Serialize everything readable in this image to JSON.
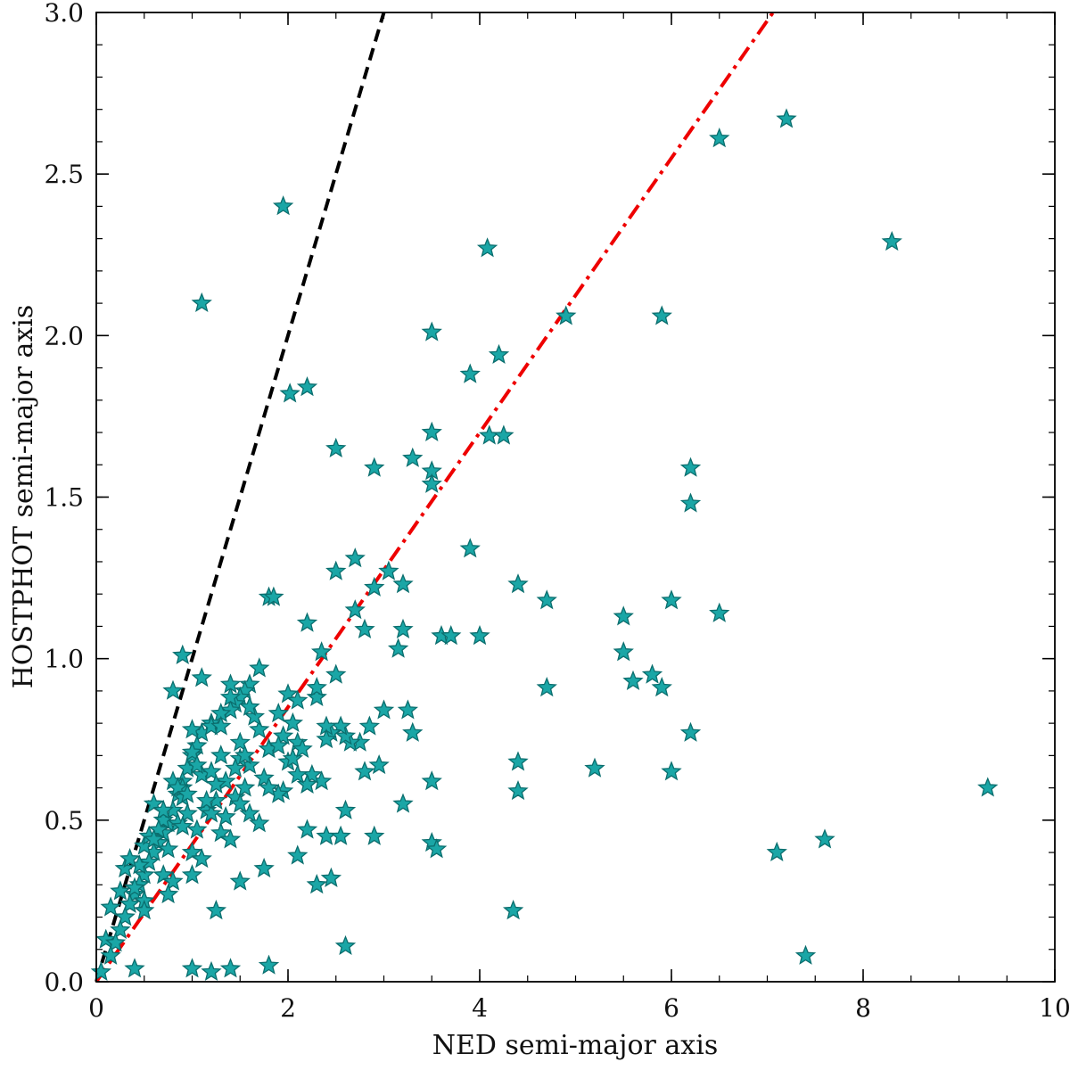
{
  "chart_data": {
    "type": "scatter",
    "title": "",
    "xlabel": "NED semi-major axis",
    "ylabel": "HOSTPHOT semi-major axis",
    "xlim": [
      0,
      10
    ],
    "ylim": [
      0,
      3.0
    ],
    "x_ticks": [
      0,
      2,
      4,
      6,
      8,
      10
    ],
    "x_tick_labels": [
      "0",
      "2",
      "4",
      "6",
      "8",
      "10"
    ],
    "y_ticks": [
      0,
      0.5,
      1.0,
      1.5,
      2.0,
      2.5,
      3.0
    ],
    "y_tick_labels": [
      "0.0",
      "0.5",
      "1.0",
      "1.5",
      "2.0",
      "2.5",
      "3.0"
    ],
    "grid": false,
    "lines": [
      {
        "style": "dashed",
        "color": "#000000",
        "slope": 1.0,
        "x": [
          0,
          3.0
        ],
        "y": [
          0,
          3.0
        ]
      },
      {
        "style": "dashdot",
        "color": "#ee0000",
        "slope": 0.425,
        "x": [
          0,
          7.06
        ],
        "y": [
          0,
          3.0
        ]
      }
    ],
    "series": [
      {
        "marker": "star",
        "color": "#1aa6a6",
        "edge_color": "#0b6e6e",
        "x": [
          1.95,
          1.1,
          3.5,
          4.08,
          4.2,
          3.9,
          4.1,
          4.25,
          4.9,
          5.9,
          6.5,
          7.2,
          8.3,
          2.2,
          2.02,
          2.5,
          3.5,
          3.5,
          3.5,
          3.3,
          2.9,
          6.2,
          6.2,
          3.9,
          4.4,
          4.7,
          6.0,
          5.5,
          6.5,
          5.5,
          5.6,
          5.8,
          5.9,
          4.0,
          3.6,
          3.7,
          4.7,
          3.2,
          2.7,
          2.8,
          3.2,
          0.9,
          6.2,
          6.0,
          5.2,
          4.4,
          4.4,
          3.5,
          3.2,
          2.9,
          2.6,
          2.4,
          2.3,
          2.2,
          2.1,
          1.95,
          2.55,
          2.45,
          2.35,
          2.3,
          2.0,
          1.8,
          1.85,
          9.3,
          7.6,
          7.1,
          7.4,
          4.35,
          2.6,
          1.8,
          1.4,
          1.2,
          1.0,
          0.4,
          0.15,
          0.05,
          0.1,
          3.5,
          3.55,
          3.3,
          3.25,
          3.0,
          2.95,
          2.8,
          2.85,
          2.75,
          2.65,
          2.6,
          2.55,
          2.45,
          2.4,
          2.25,
          2.2,
          2.1,
          2.05,
          1.7,
          1.6,
          1.55,
          1.5,
          1.45,
          1.4,
          1.3,
          1.2,
          1.1,
          1.05,
          1.0,
          0.95,
          0.9,
          0.85,
          0.8,
          0.75,
          0.7,
          0.65,
          0.6,
          0.55,
          0.5,
          0.45,
          0.4,
          0.35,
          0.3,
          0.25,
          0.2,
          0.15,
          0.3,
          0.5,
          0.7,
          0.9,
          1.1,
          1.3,
          1.5,
          1.7,
          1.9,
          2.1,
          2.3,
          2.5,
          0.6,
          0.8,
          1.0,
          1.2,
          1.4,
          1.6,
          1.8,
          2.0,
          2.2,
          0.4,
          0.7,
          1.0,
          1.3,
          1.6,
          1.9,
          0.5,
          0.8,
          1.1,
          1.4,
          1.7,
          0.65,
          0.95,
          1.25,
          1.55,
          0.45,
          0.75,
          1.05,
          1.35,
          0.55,
          0.85,
          1.15,
          1.45,
          1.75,
          2.05,
          0.35,
          0.6,
          0.9,
          1.2,
          1.5,
          1.8,
          2.15,
          2.4,
          0.8,
          1.1,
          1.4,
          1.65,
          1.95,
          0.25,
          0.5,
          0.75,
          1.0,
          1.25,
          1.5,
          1.75,
          0.9,
          1.2,
          1.5,
          1.8,
          2.1,
          1.0,
          1.3,
          1.6,
          1.9,
          0.7,
          1.15,
          1.45,
          0.85,
          1.35,
          1.05,
          1.55,
          0.95,
          1.25,
          2.35,
          2.7,
          3.05,
          2.2,
          2.9,
          3.15,
          2.5
        ],
        "y": [
          2.4,
          2.1,
          2.01,
          2.27,
          1.94,
          1.88,
          1.69,
          1.69,
          2.06,
          2.06,
          2.61,
          2.67,
          2.29,
          1.84,
          1.82,
          1.65,
          1.7,
          1.58,
          1.54,
          1.62,
          1.59,
          1.59,
          1.48,
          1.34,
          1.23,
          1.18,
          1.18,
          1.13,
          1.14,
          1.02,
          0.93,
          0.95,
          0.91,
          1.07,
          1.07,
          1.07,
          0.91,
          1.23,
          1.15,
          1.09,
          1.09,
          1.01,
          0.77,
          0.65,
          0.66,
          0.68,
          0.59,
          0.62,
          0.55,
          0.45,
          0.53,
          0.45,
          0.3,
          0.47,
          0.39,
          0.59,
          0.45,
          0.32,
          0.62,
          0.88,
          0.89,
          1.19,
          1.19,
          0.6,
          0.44,
          0.4,
          0.08,
          0.22,
          0.11,
          0.05,
          0.04,
          0.03,
          0.04,
          0.04,
          0.23,
          0.03,
          0.13,
          0.43,
          0.41,
          0.77,
          0.84,
          0.84,
          0.67,
          0.65,
          0.79,
          0.74,
          0.74,
          0.76,
          0.79,
          0.77,
          0.79,
          0.64,
          0.61,
          0.74,
          0.8,
          0.97,
          0.92,
          0.9,
          0.88,
          0.86,
          0.84,
          0.83,
          0.8,
          0.77,
          0.73,
          0.7,
          0.66,
          0.62,
          0.58,
          0.53,
          0.49,
          0.46,
          0.43,
          0.4,
          0.37,
          0.33,
          0.3,
          0.27,
          0.24,
          0.2,
          0.16,
          0.12,
          0.08,
          0.35,
          0.42,
          0.5,
          0.57,
          0.64,
          0.7,
          0.74,
          0.78,
          0.83,
          0.87,
          0.91,
          0.95,
          0.55,
          0.62,
          0.71,
          0.79,
          0.88,
          0.67,
          0.72,
          0.68,
          0.61,
          0.29,
          0.33,
          0.4,
          0.46,
          0.52,
          0.58,
          0.25,
          0.31,
          0.38,
          0.44,
          0.49,
          0.47,
          0.52,
          0.56,
          0.6,
          0.36,
          0.41,
          0.47,
          0.51,
          0.45,
          0.49,
          0.53,
          0.57,
          0.63,
          0.69,
          0.38,
          0.44,
          0.48,
          0.52,
          0.55,
          0.6,
          0.72,
          0.75,
          0.9,
          0.94,
          0.92,
          0.82,
          0.76,
          0.28,
          0.22,
          0.27,
          0.33,
          0.22,
          0.31,
          0.35,
          0.6,
          0.65,
          0.69,
          0.72,
          0.64,
          0.78,
          0.79,
          0.85,
          0.73,
          0.53,
          0.56,
          0.66,
          0.6,
          0.62,
          0.67,
          0.7,
          0.58,
          0.61,
          1.02,
          1.31,
          1.27,
          1.11,
          1.22,
          1.03,
          1.27
        ]
      }
    ]
  }
}
